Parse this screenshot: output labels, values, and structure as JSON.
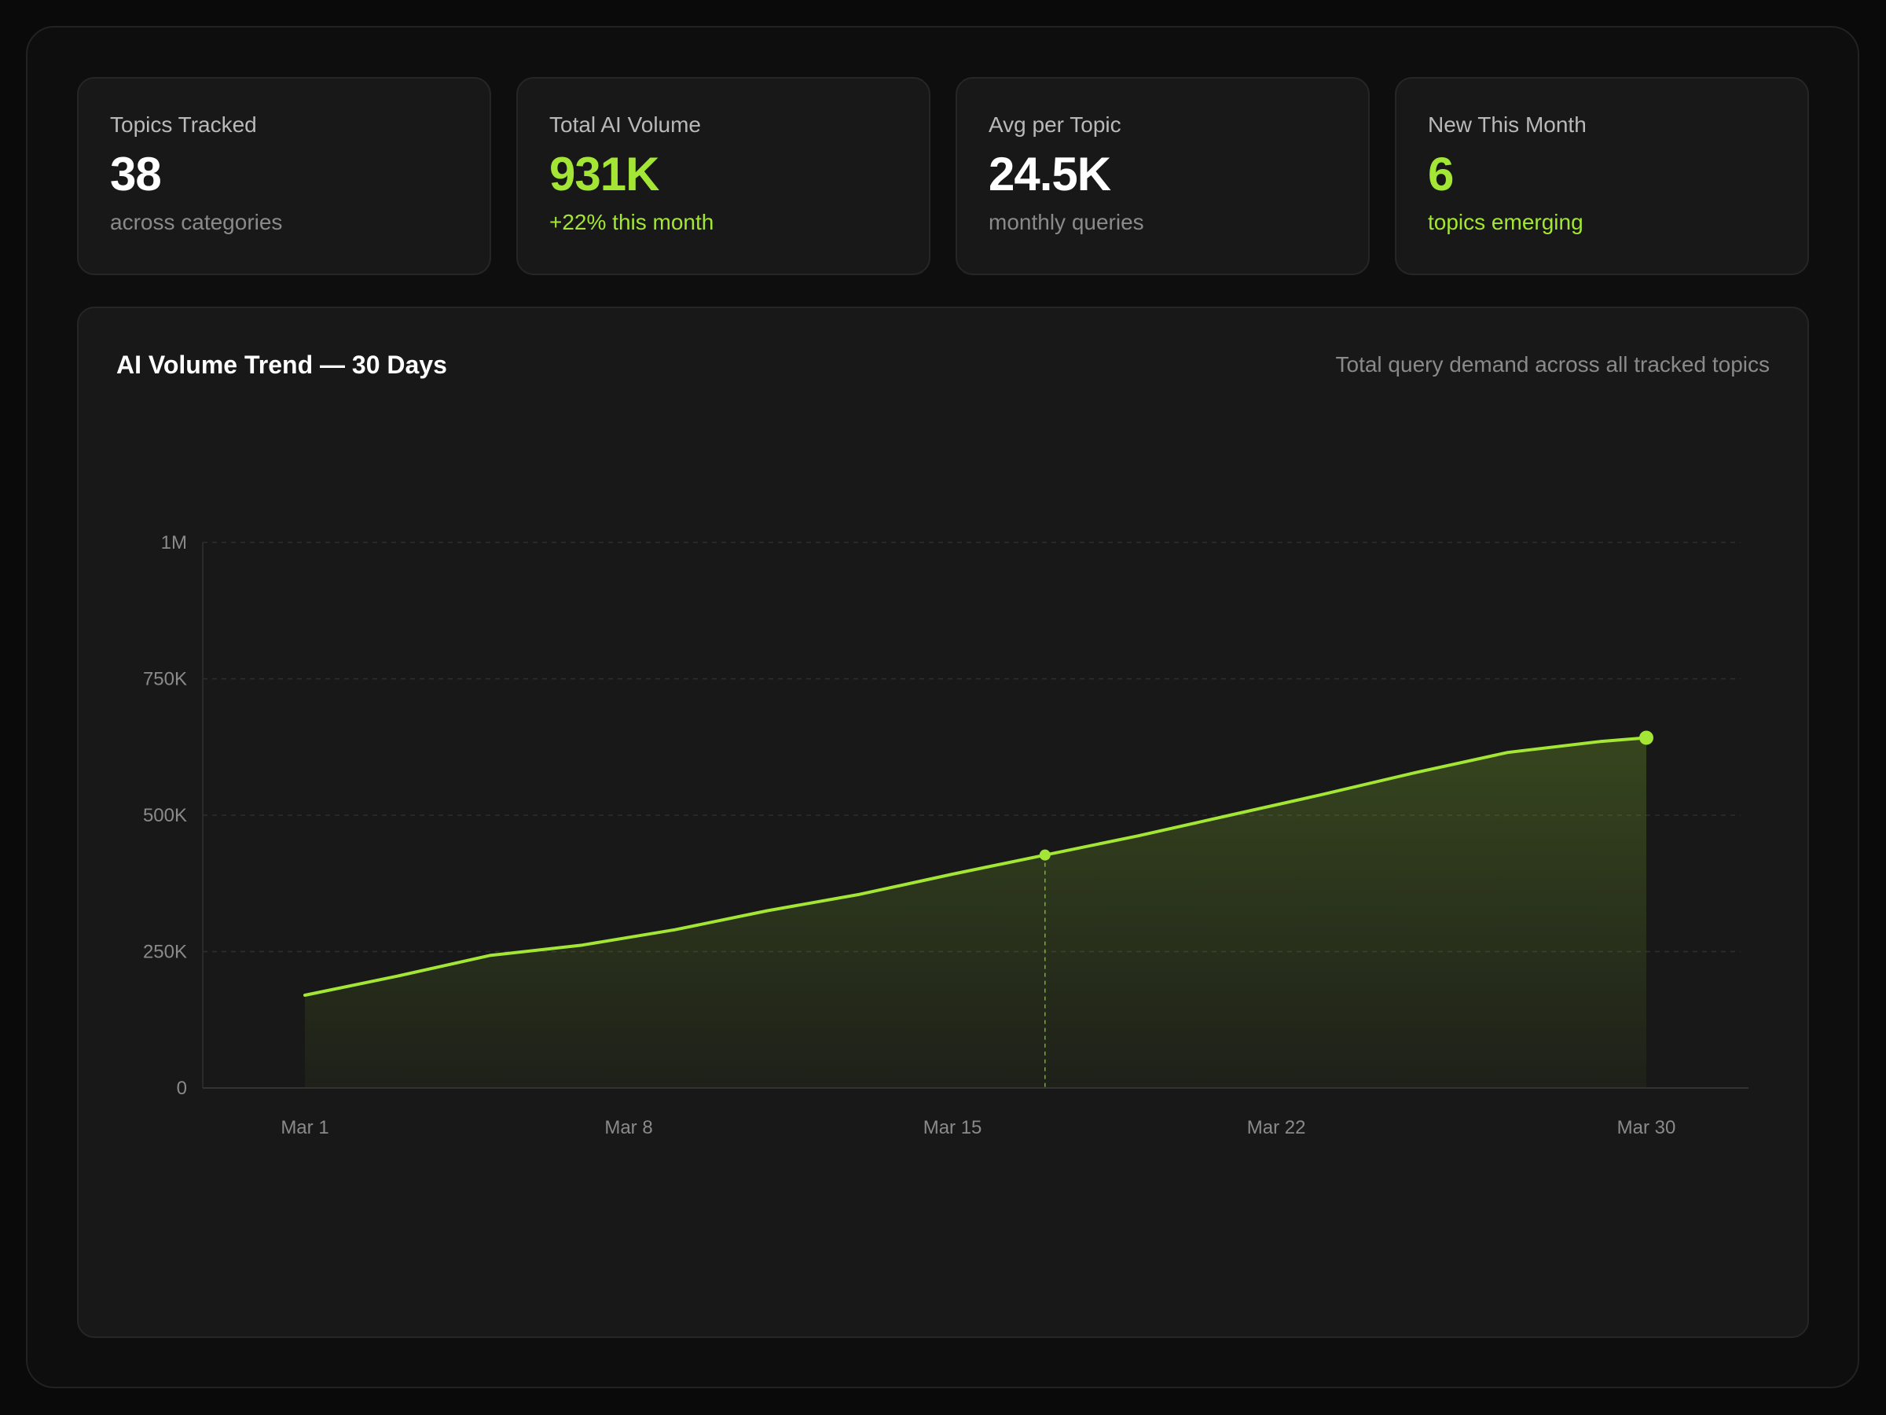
{
  "stats": [
    {
      "label": "Topics Tracked",
      "value": "38",
      "sub": "across categories",
      "accent": false
    },
    {
      "label": "Total AI Volume",
      "value": "931K",
      "sub": "+22% this month",
      "accent": true
    },
    {
      "label": "Avg per Topic",
      "value": "24.5K",
      "sub": "monthly queries",
      "accent": false
    },
    {
      "label": "New This Month",
      "value": "6",
      "sub": "topics emerging",
      "accent": true
    }
  ],
  "chart": {
    "title": "AI Volume Trend — 30 Days",
    "subtitle": "Total query demand across all tracked topics"
  },
  "colors": {
    "accent": "#a3e635",
    "background": "#0a0a0a",
    "card": "#181818"
  },
  "chart_data": {
    "type": "area",
    "title": "AI Volume Trend — 30 Days",
    "subtitle": "Total query demand across all tracked topics",
    "xlabel": "",
    "ylabel": "",
    "x_range": [
      "Mar 1",
      "Mar 30"
    ],
    "x_ticks": [
      {
        "day": 1,
        "label": "Mar 1"
      },
      {
        "day": 8,
        "label": "Mar 8"
      },
      {
        "day": 15,
        "label": "Mar 15"
      },
      {
        "day": 22,
        "label": "Mar 22"
      },
      {
        "day": 30,
        "label": "Mar 30"
      }
    ],
    "y_ticks": [
      {
        "value": 0,
        "label": "0"
      },
      {
        "value": 250000,
        "label": "250K"
      },
      {
        "value": 500000,
        "label": "500K"
      },
      {
        "value": 750000,
        "label": "750K"
      },
      {
        "value": 1000000,
        "label": "1M"
      }
    ],
    "ylim": [
      0,
      1000000
    ],
    "grid": true,
    "series": [
      {
        "x": [
          "Mar 1",
          "Mar 3",
          "Mar 5",
          "Mar 7",
          "Mar 9",
          "Mar 11",
          "Mar 13",
          "Mar 15",
          "Mar 17",
          "Mar 19",
          "Mar 21",
          "Mar 23",
          "Mar 25",
          "Mar 27",
          "Mar 29",
          "Mar 30"
        ],
        "values": [
          170000,
          205000,
          243000,
          262000,
          290000,
          325000,
          355000,
          392000,
          427000,
          462000,
          500000,
          538000,
          578000,
          615000,
          635000,
          642000
        ]
      }
    ],
    "highlight_points": [
      {
        "x": "Mar 17",
        "value": 427000,
        "guide_line": true
      },
      {
        "x": "Mar 30",
        "value": 642000,
        "guide_line": false
      }
    ]
  }
}
